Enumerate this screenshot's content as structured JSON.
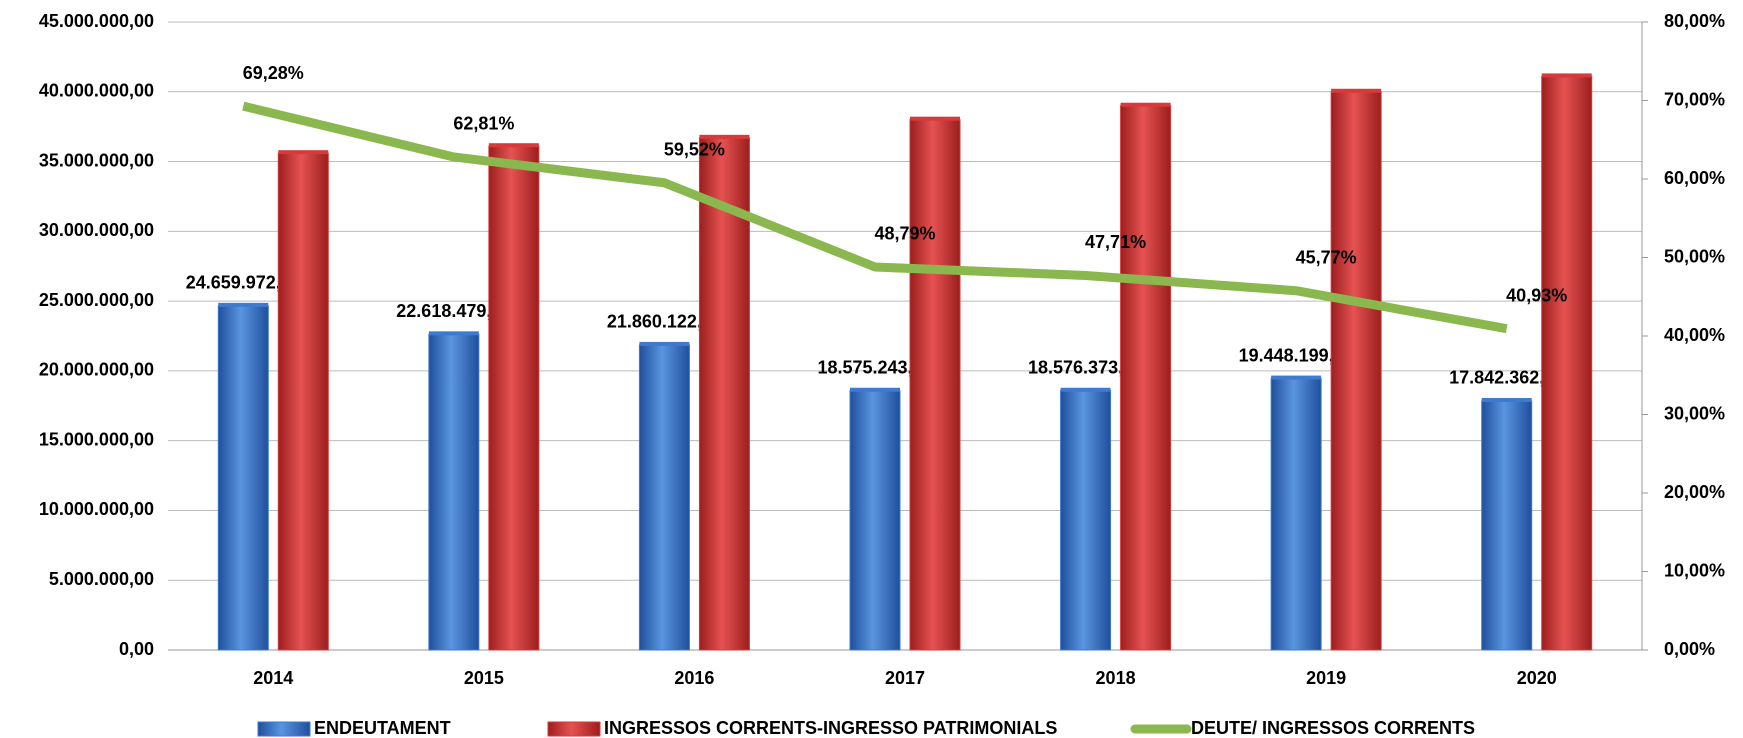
{
  "chart_data": {
    "type": "bar-line",
    "categories": [
      "2014",
      "2015",
      "2016",
      "2017",
      "2018",
      "2019",
      "2020"
    ],
    "series": [
      {
        "name": "ENDEUTAMENT",
        "color": "#3d7ad0",
        "type": "bar",
        "values": [
          24659972.21,
          22618479.67,
          21860122.82,
          18575243.93,
          18576373.94,
          19448199.3,
          17842362.94
        ],
        "value_labels": [
          "24.659.972,21",
          "22.618.479,67",
          "21.860.122,82",
          "18.575.243,93",
          "18.576.373,94",
          "19.448.199,30",
          "17.842.362,94"
        ]
      },
      {
        "name": "INGRESSOS CORRENTS-INGRESSO PATRIMONIALS",
        "color": "#d63a3a",
        "type": "bar",
        "values": [
          35600000,
          36100000,
          36700000,
          38000000,
          39000000,
          40000000,
          41100000
        ]
      },
      {
        "name": "DEUTE/ INGRESSOS CORRENTS",
        "color": "#8ab84f",
        "type": "line",
        "axis": "y2",
        "values": [
          69.28,
          62.81,
          59.52,
          48.79,
          47.71,
          45.77,
          40.93
        ],
        "value_labels": [
          "69,28%",
          "62,81%",
          "59,52%",
          "48,79%",
          "47,71%",
          "45,77%",
          "40,93%"
        ]
      }
    ],
    "ylim": [
      0,
      45000000
    ],
    "yticks": [
      {
        "value": 0,
        "label": "0,00"
      },
      {
        "value": 5000000,
        "label": "5.000.000,00"
      },
      {
        "value": 10000000,
        "label": "10.000.000,00"
      },
      {
        "value": 15000000,
        "label": "15.000.000,00"
      },
      {
        "value": 20000000,
        "label": "20.000.000,00"
      },
      {
        "value": 25000000,
        "label": "25.000.000,00"
      },
      {
        "value": 30000000,
        "label": "30.000.000,00"
      },
      {
        "value": 35000000,
        "label": "35.000.000,00"
      },
      {
        "value": 40000000,
        "label": "40.000.000,00"
      },
      {
        "value": 45000000,
        "label": "45.000.000,00"
      }
    ],
    "y2lim": [
      0,
      80
    ],
    "y2ticks": [
      {
        "value": 0,
        "label": "0,00%"
      },
      {
        "value": 10,
        "label": "10,00%"
      },
      {
        "value": 20,
        "label": "20,00%"
      },
      {
        "value": 30,
        "label": "30,00%"
      },
      {
        "value": 40,
        "label": "40,00%"
      },
      {
        "value": 50,
        "label": "50,00%"
      },
      {
        "value": 60,
        "label": "60,00%"
      },
      {
        "value": 70,
        "label": "70,00%"
      },
      {
        "value": 80,
        "label": "80,00%"
      }
    ],
    "grid": true,
    "legend": "bottom"
  }
}
